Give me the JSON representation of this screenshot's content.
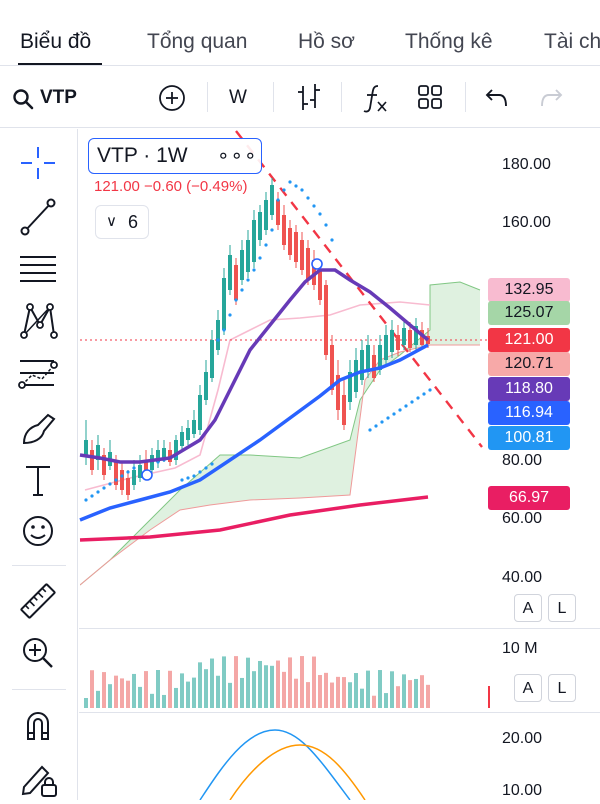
{
  "tabs": [
    {
      "label": "Biểu đồ",
      "active": true
    },
    {
      "label": "Tổng quan"
    },
    {
      "label": "Hồ sơ"
    },
    {
      "label": "Thống kê"
    },
    {
      "label": "Tài ch"
    }
  ],
  "toolbar": {
    "symbol": "VTP",
    "interval": "W",
    "icons": [
      "search-icon",
      "add-symbol-icon",
      "bar-style-icon",
      "indicators-icon",
      "layout-icon",
      "undo-icon",
      "redo-icon"
    ]
  },
  "sidebar_tools": [
    "crosshair-icon",
    "trend-line-icon",
    "fib-retracement-icon",
    "pattern-icon",
    "prediction-icon",
    "brush-icon",
    "text-icon",
    "emoji-icon",
    "ruler-icon",
    "zoom-in-icon",
    "magnet-icon",
    "lock-pencil-icon"
  ],
  "legend": {
    "symbol_interval": "VTP · 1W",
    "more": "∘∘∘",
    "values": "121.00  −0.60 (−0.49%)",
    "indicator_count": "6"
  },
  "price_axis": [
    "180.00",
    "160.00",
    "80.00",
    "60.00",
    "40.00"
  ],
  "price_tags": [
    {
      "value": "132.95",
      "bg": "#f8bbd0",
      "fg": "#131722"
    },
    {
      "value": "125.07",
      "bg": "#a5d6a7",
      "fg": "#131722"
    },
    {
      "value": "121.00",
      "bg": "#f23645",
      "fg": "#ffffff"
    },
    {
      "value": "120.71",
      "bg": "#f7a9a8",
      "fg": "#131722"
    },
    {
      "value": "118.80",
      "bg": "#673ab7",
      "fg": "#ffffff"
    },
    {
      "value": "116.94",
      "bg": "#2962ff",
      "fg": "#ffffff"
    },
    {
      "value": "100.81",
      "bg": "#2196f3",
      "fg": "#ffffff"
    },
    {
      "value": "66.97",
      "bg": "#e91e63",
      "fg": "#ffffff"
    }
  ],
  "volume_axis": "10 M",
  "oscillator_axis": [
    "20.00",
    "10.00"
  ],
  "scale_buttons": {
    "auto": "A",
    "log": "L"
  },
  "colors": {
    "up": "#26a69a",
    "down": "#ef5350",
    "ma_purple": "#673ab7",
    "ma_blue": "#2962ff",
    "ma_red": "#e91e63"
  }
}
